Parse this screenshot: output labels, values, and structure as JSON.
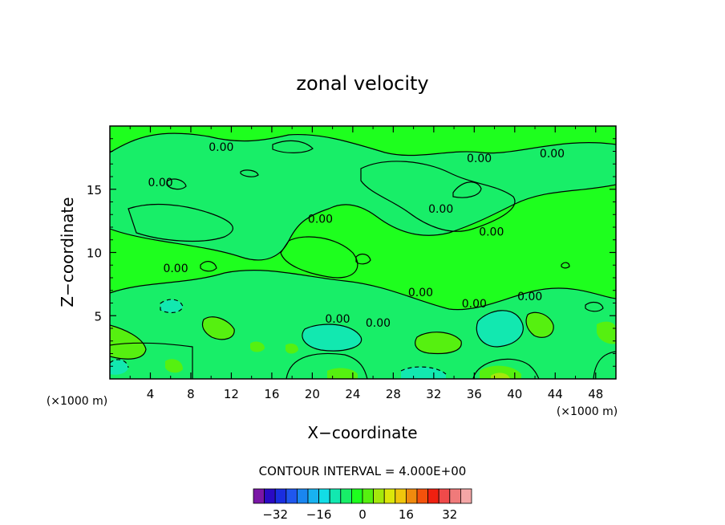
{
  "chart_data": {
    "type": "heatmap",
    "title": "zonal velocity",
    "xlabel": "X−coordinate",
    "ylabel": "Z−coordinate",
    "x_unit": "(×1000 m)",
    "y_unit": "(×1000 m)",
    "xlim": [
      0,
      50
    ],
    "ylim": [
      0,
      20
    ],
    "x_ticks": [
      4,
      8,
      12,
      16,
      20,
      24,
      28,
      32,
      36,
      40,
      44,
      48
    ],
    "y_ticks": [
      5,
      10,
      15
    ],
    "contour_interval": "CONTOUR INTERVAL = 4.000E+00",
    "contour_label": "0.00",
    "colorbar": {
      "ticks": [
        -32,
        -16,
        0,
        16,
        32
      ],
      "tick_labels": [
        "−32",
        "−16",
        "0",
        "16",
        "32"
      ],
      "colors": [
        "#7a16a6",
        "#2a0ac4",
        "#1a2ee0",
        "#1f57ee",
        "#1a86f0",
        "#18b2f0",
        "#12dde6",
        "#12e8b0",
        "#18ee68",
        "#1eff1e",
        "#56f010",
        "#a4e80c",
        "#dce60a",
        "#f0c60c",
        "#f08a0e",
        "#f4520c",
        "#f02010",
        "#f04a4a",
        "#f07a7a",
        "#f4a6a6"
      ]
    },
    "contour_label_positions": [
      {
        "x": 11,
        "z": 18.1
      },
      {
        "x": 5,
        "z": 15.3
      },
      {
        "x": 20.8,
        "z": 12.4
      },
      {
        "x": 32.7,
        "z": 13.2
      },
      {
        "x": 36.5,
        "z": 17.2
      },
      {
        "x": 43.7,
        "z": 17.6
      },
      {
        "x": 37.7,
        "z": 11.4
      },
      {
        "x": 6.5,
        "z": 8.5
      },
      {
        "x": 30.7,
        "z": 6.6
      },
      {
        "x": 36,
        "z": 5.7
      },
      {
        "x": 41.5,
        "z": 6.3
      },
      {
        "x": 22.5,
        "z": 4.5
      },
      {
        "x": 26.5,
        "z": 4.2
      }
    ]
  }
}
